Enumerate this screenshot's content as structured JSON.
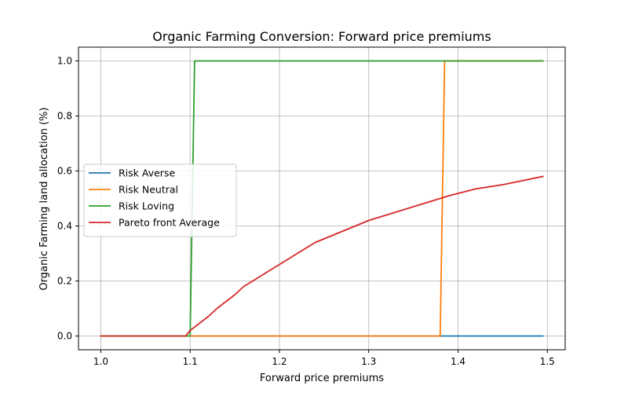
{
  "chart_data": {
    "type": "line",
    "title": "Organic Farming Conversion: Forward price premiums",
    "xlabel": "Forward price premiums",
    "ylabel": "Organic Farming land allocation (%)",
    "xlim": [
      0.975,
      1.52
    ],
    "ylim": [
      -0.05,
      1.05
    ],
    "xticks": [
      1.0,
      1.1,
      1.2,
      1.3,
      1.4,
      1.5
    ],
    "yticks": [
      0.0,
      0.2,
      0.4,
      0.6,
      0.8,
      1.0
    ],
    "xtick_labels": [
      "1.0",
      "1.1",
      "1.2",
      "1.3",
      "1.4",
      "1.5"
    ],
    "ytick_labels": [
      "0.0",
      "0.2",
      "0.4",
      "0.6",
      "0.8",
      "1.0"
    ],
    "grid": true,
    "legend_position": "center-left",
    "series": [
      {
        "name": "Risk Averse",
        "color": "#1f77b4",
        "x": [
          1.0,
          1.495
        ],
        "y": [
          0.0,
          0.0
        ]
      },
      {
        "name": "Risk Neutral",
        "color": "#ff7f0e",
        "x": [
          1.0,
          1.38,
          1.385,
          1.495
        ],
        "y": [
          0.0,
          0.0,
          1.0,
          1.0
        ]
      },
      {
        "name": "Risk Loving",
        "color": "#2ca02c",
        "x": [
          1.0,
          1.1,
          1.105,
          1.495
        ],
        "y": [
          0.0,
          0.0,
          1.0,
          1.0
        ]
      },
      {
        "name": "Pareto front Average",
        "color": "#d62728",
        "x": [
          1.0,
          1.095,
          1.1,
          1.12,
          1.13,
          1.15,
          1.16,
          1.18,
          1.2,
          1.21,
          1.24,
          1.27,
          1.3,
          1.33,
          1.36,
          1.39,
          1.42,
          1.45,
          1.48,
          1.495
        ],
        "y": [
          0.0,
          0.0,
          0.02,
          0.07,
          0.1,
          0.15,
          0.18,
          0.22,
          0.26,
          0.28,
          0.34,
          0.38,
          0.42,
          0.45,
          0.48,
          0.51,
          0.535,
          0.55,
          0.57,
          0.58
        ]
      }
    ]
  }
}
